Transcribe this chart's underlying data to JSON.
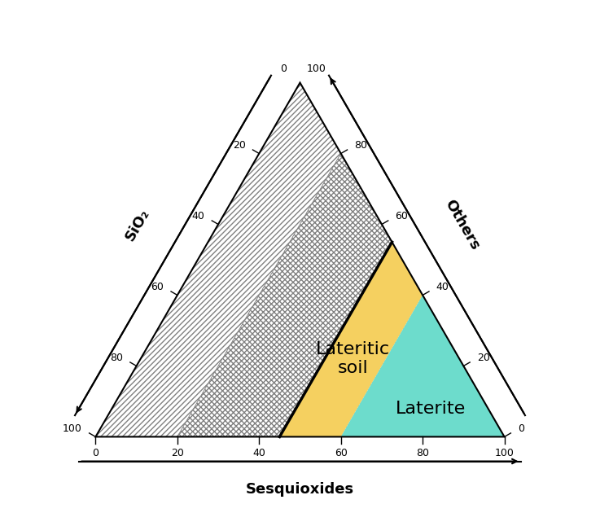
{
  "label_sio2": "SiO₂",
  "label_sesquioxides": "Sesquioxides",
  "label_others": "Others",
  "label_lateritic_soil": "Lateritic\nsoil",
  "label_laterite": "Laterite",
  "tick_values": [
    0,
    20,
    40,
    60,
    80,
    100
  ],
  "color_lateritic_soil": "#F5D060",
  "color_laterite": "#6DDCCC",
  "background": "#FFFFFF",
  "figsize": [
    7.37,
    6.46
  ],
  "dpi": 100,
  "sesq_bold_boundary": 45,
  "sesq_laterite_boundary": 60
}
